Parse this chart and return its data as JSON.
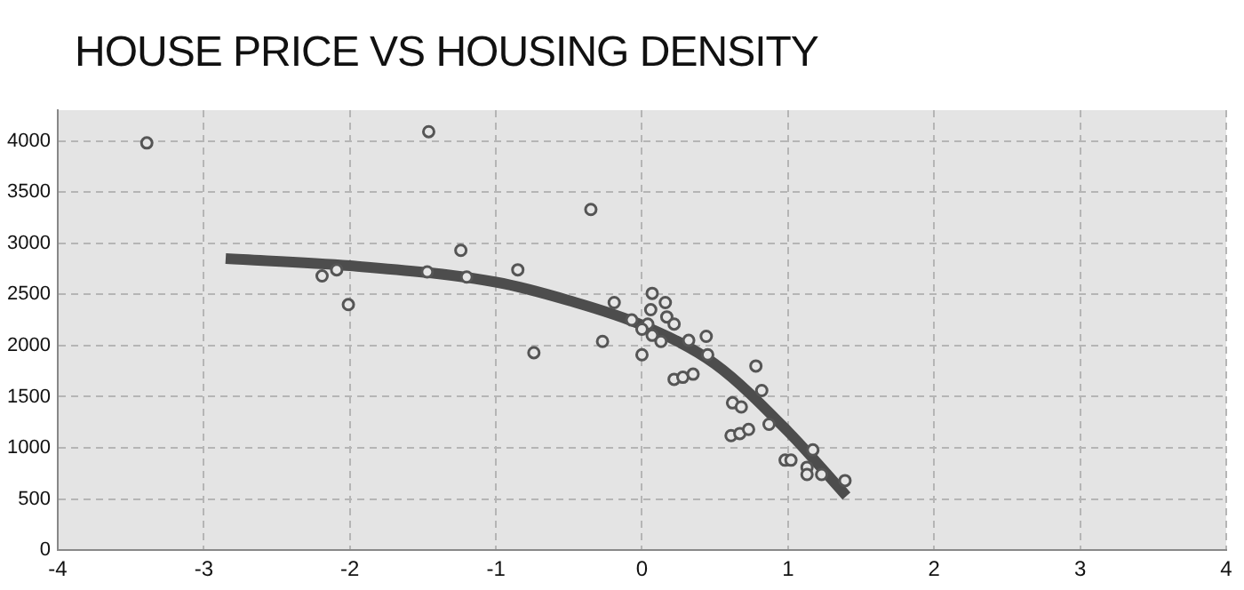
{
  "chart_data": {
    "type": "scatter",
    "title": "HOUSE PRICE VS HOUSING DENSITY",
    "xlim": [
      -4,
      4
    ],
    "xticks": [
      -4,
      -3,
      -2,
      -1,
      0,
      1,
      2,
      3,
      4
    ],
    "ylim": [
      0,
      4300
    ],
    "yticks": [
      0,
      500,
      1000,
      1500,
      2000,
      2500,
      3000,
      3500,
      4000
    ],
    "grid": true,
    "legend": false,
    "series": [
      {
        "type": "scatter",
        "marker": "circle",
        "color": "#555555",
        "x": [
          -3.39,
          -2.19,
          -2.09,
          -2.01,
          -1.46,
          -1.47,
          -1.24,
          -1.2,
          -0.85,
          -0.74,
          -0.35,
          -0.27,
          -0.19,
          -0.07,
          0.0,
          0.07,
          0.06,
          0.16,
          0.17,
          0.22,
          0.04,
          0.0,
          0.07,
          0.13,
          0.32,
          0.44,
          0.45,
          0.22,
          0.28,
          0.35,
          0.78,
          0.82,
          0.62,
          0.68,
          0.87,
          0.61,
          0.67,
          0.73,
          0.98,
          1.02,
          1.17,
          1.13,
          1.13,
          1.23,
          1.39
        ],
        "values": [
          3980,
          2680,
          2740,
          2400,
          4090,
          2720,
          2930,
          2670,
          2740,
          1930,
          3330,
          2040,
          2420,
          2250,
          1910,
          2510,
          2350,
          2420,
          2280,
          2210,
          2210,
          2160,
          2100,
          2040,
          2050,
          2090,
          1910,
          1670,
          1690,
          1720,
          1800,
          1560,
          1440,
          1400,
          1230,
          1120,
          1140,
          1180,
          880,
          880,
          980,
          810,
          740,
          740,
          680
        ]
      },
      {
        "type": "line",
        "marker": "none",
        "color": "#4d4d4d",
        "x": [
          -2.85,
          -2,
          -1,
          -0.5,
          0,
          0.5,
          1,
          1.4
        ],
        "values": [
          2850,
          2780,
          2620,
          2440,
          2200,
          1820,
          1160,
          530
        ]
      }
    ]
  }
}
